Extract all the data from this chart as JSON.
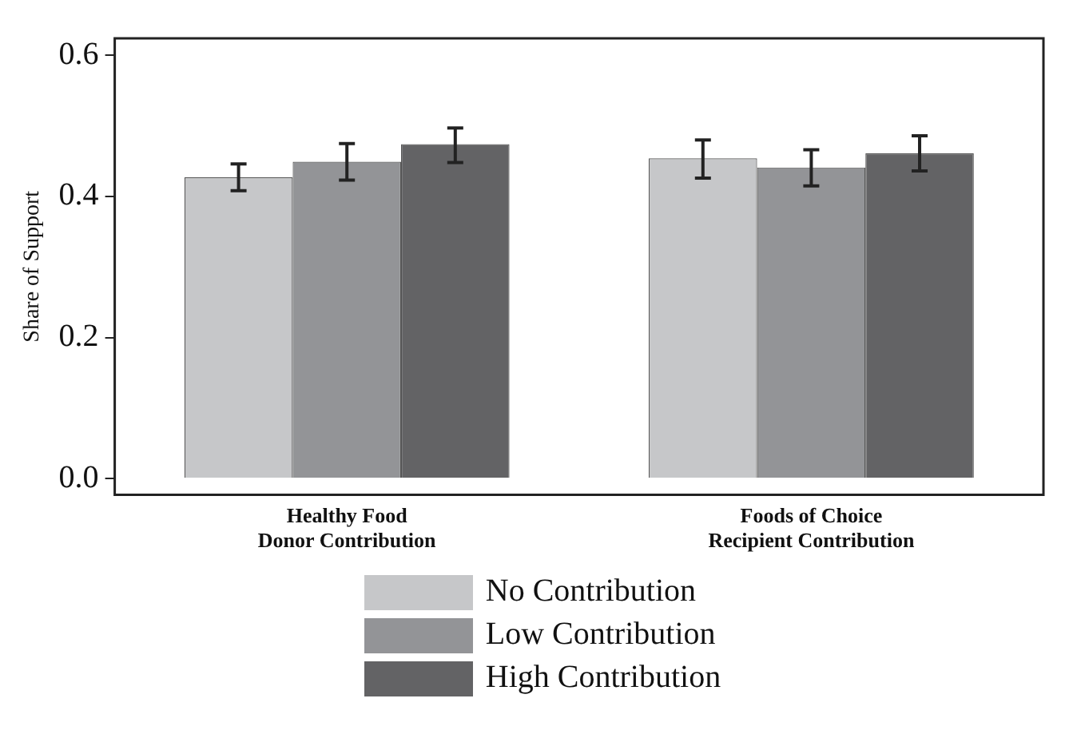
{
  "chart_data": {
    "type": "bar",
    "ylabel": "Share of Support",
    "categories": [
      "Healthy Food\nDonor Contribution",
      "Foods of Choice\nRecipient Contribution"
    ],
    "series": [
      {
        "name": "No Contribution",
        "color": "#c6c7c9",
        "values": [
          0.427,
          0.454
        ],
        "errors": [
          [
            0.408,
            0.446
          ],
          [
            0.426,
            0.48
          ]
        ]
      },
      {
        "name": "Low Contribution",
        "color": "#939497",
        "values": [
          0.449,
          0.441
        ],
        "errors": [
          [
            0.423,
            0.475
          ],
          [
            0.415,
            0.466
          ]
        ]
      },
      {
        "name": "High Contribution",
        "color": "#636365",
        "values": [
          0.474,
          0.461
        ],
        "errors": [
          [
            0.448,
            0.497
          ],
          [
            0.436,
            0.486
          ]
        ]
      }
    ],
    "ylim": [
      -0.023,
      0.624
    ],
    "yticks": [
      {
        "value": 0,
        "label": "0.0"
      },
      {
        "value": 0.2,
        "label": "0.2"
      },
      {
        "value": 0.4,
        "label": "0.4"
      },
      {
        "value": 0.6,
        "label": "0.6"
      }
    ],
    "grid": false,
    "legend": "bottom"
  }
}
